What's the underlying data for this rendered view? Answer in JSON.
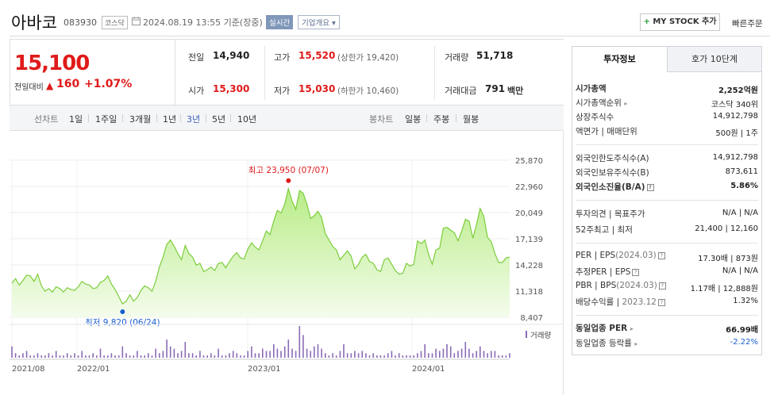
{
  "header": {
    "stock_name": "아바코",
    "stock_code": "083930",
    "market_badge": "코스닥",
    "date_text": "2024.08.19 13:55  기준(장중)",
    "realtime_badge": "실시간",
    "company_overview": "기업개요",
    "mystock_label": "MY STOCK 추가",
    "quick_order": "빠른주문"
  },
  "price": {
    "current": "15,100",
    "change_label": "전일대비",
    "change_amount": "160",
    "change_percent": "+1.07%"
  },
  "stats": {
    "prev_close_label": "전일",
    "prev_close": "14,940",
    "open_label": "시가",
    "open": "15,300",
    "high_label": "고가",
    "high": "15,520",
    "upper_limit": "(상한가 19,420)",
    "low_label": "저가",
    "low": "15,030",
    "lower_limit": "(하한가 10,460)",
    "volume_label": "거래량",
    "volume": "51,718",
    "value_label": "거래대금",
    "value": "791",
    "value_unit": "백만"
  },
  "toolbar": {
    "line_chart_label": "선차트",
    "periods": [
      "1일",
      "1주일",
      "3개월",
      "1년",
      "3년",
      "5년",
      "10년"
    ],
    "active_period": "3년",
    "candle_label": "봉차트",
    "candles": [
      "일봉",
      "주봉",
      "월봉"
    ]
  },
  "chart_data": {
    "type": "area",
    "y_ticks": [
      "25,870",
      "22,960",
      "20,049",
      "17,139",
      "14,228",
      "11,318",
      "8,407"
    ],
    "ylim": [
      8407,
      25870
    ],
    "x_ticks": [
      "2021/08",
      "2022/01",
      "2023/01",
      "2024/01"
    ],
    "high_annotation": "최고 23,950 (07/07)",
    "low_annotation": "최저 9,820 (06/24)",
    "volume_legend": "거래량",
    "series_color": "#7ccd3c",
    "price_series": [
      12200,
      12700,
      12000,
      12500,
      13100,
      13000,
      12400,
      13200,
      11900,
      11300,
      11600,
      11200,
      11800,
      11600,
      11200,
      11700,
      11500,
      11400,
      11800,
      12400,
      12100,
      12000,
      11600,
      11700,
      12300,
      12500,
      13000,
      12100,
      11500,
      10700,
      9900,
      10200,
      10900,
      10200,
      10600,
      11400,
      11900,
      11700,
      11300,
      12400,
      14000,
      15100,
      16500,
      17000,
      16300,
      15500,
      14800,
      16400,
      15500,
      15100,
      14200,
      14400,
      13500,
      13700,
      14000,
      13600,
      14400,
      14500,
      13900,
      14600,
      15200,
      15600,
      15000,
      14900,
      16000,
      16700,
      16200,
      15900,
      16900,
      18000,
      17600,
      19100,
      20300,
      20000,
      21000,
      22700,
      21300,
      20400,
      22500,
      22200,
      21000,
      19400,
      19700,
      20200,
      19500,
      17700,
      17000,
      16300,
      15900,
      14800,
      15300,
      15800,
      15200,
      13800,
      14300,
      15100,
      15400,
      14600,
      14400,
      13700,
      13500,
      14800,
      15000,
      14300,
      13600,
      13200,
      13300,
      14400,
      14100,
      14300,
      16900,
      16600,
      17000,
      15400,
      14300,
      15900,
      16100,
      18300,
      18400,
      18100,
      17800,
      16900,
      18000,
      19300,
      19100,
      17200,
      18700,
      20500,
      19600,
      17300,
      16800,
      15500,
      14500,
      14500,
      15000,
      15100
    ],
    "volume_series": [
      5,
      2,
      1,
      2,
      3,
      1,
      1,
      2,
      1,
      1,
      2,
      1,
      3,
      1,
      1,
      2,
      1,
      2,
      1,
      3,
      1,
      1,
      2,
      1,
      4,
      1,
      1,
      2,
      1,
      1,
      5,
      2,
      1,
      1,
      3,
      1,
      1,
      2,
      1,
      4,
      2,
      3,
      8,
      5,
      4,
      2,
      3,
      7,
      2,
      2,
      1,
      3,
      1,
      1,
      2,
      1,
      4,
      1,
      1,
      2,
      3,
      2,
      1,
      1,
      3,
      5,
      2,
      2,
      4,
      3,
      3,
      6,
      4,
      3,
      5,
      8,
      4,
      3,
      14,
      10,
      4,
      3,
      5,
      6,
      4,
      2,
      1,
      2,
      1,
      3,
      6,
      2,
      2,
      3,
      2,
      3,
      2,
      1,
      2,
      1,
      1,
      1,
      2,
      3,
      1,
      2,
      1,
      1,
      1,
      1,
      2,
      3,
      6,
      2,
      2,
      4,
      3,
      4,
      6,
      5,
      2,
      3,
      4,
      7,
      4,
      2,
      3,
      5,
      3,
      2,
      3,
      3,
      1,
      1,
      1,
      2
    ]
  },
  "panel": {
    "tab_info": "투자정보",
    "tab_hoga": "호가 10단계",
    "rows": [
      {
        "label": "시가총액",
        "value": "2,252억원"
      },
      {
        "label": "시가총액순위",
        "value": "코스닥 340위"
      },
      {
        "label": "상장주식수",
        "value": "14,912,798"
      },
      {
        "label": "액면가 | 매매단위",
        "value": "500원 | 1주"
      },
      {
        "label": "외국인한도주식수(A)",
        "value": "14,912,798"
      },
      {
        "label": "외국인보유주식수(B)",
        "value": "873,611"
      },
      {
        "label": "외국인소진율(B/A)",
        "value": "5.86%"
      },
      {
        "label": "투자의견 | 목표주가",
        "value": "N/A | N/A"
      },
      {
        "label": "52주최고 | 최저",
        "value": "21,400 | 12,160"
      },
      {
        "label": "PER | EPS",
        "label_note": "(2024.03)",
        "value": "17.30배 | 873원"
      },
      {
        "label": "추정PER | EPS",
        "value": "N/A | N/A"
      },
      {
        "label": "PBR | BPS",
        "label_note": "(2024.03)",
        "value": "1.17배 | 12,888원"
      },
      {
        "label": "배당수익률 |",
        "label_note": "2023.12",
        "value": "1.32%"
      },
      {
        "label": "동일업종 PER",
        "value": "66.99배"
      },
      {
        "label": "동일업종 등락률",
        "value": "-2.22%"
      }
    ]
  }
}
